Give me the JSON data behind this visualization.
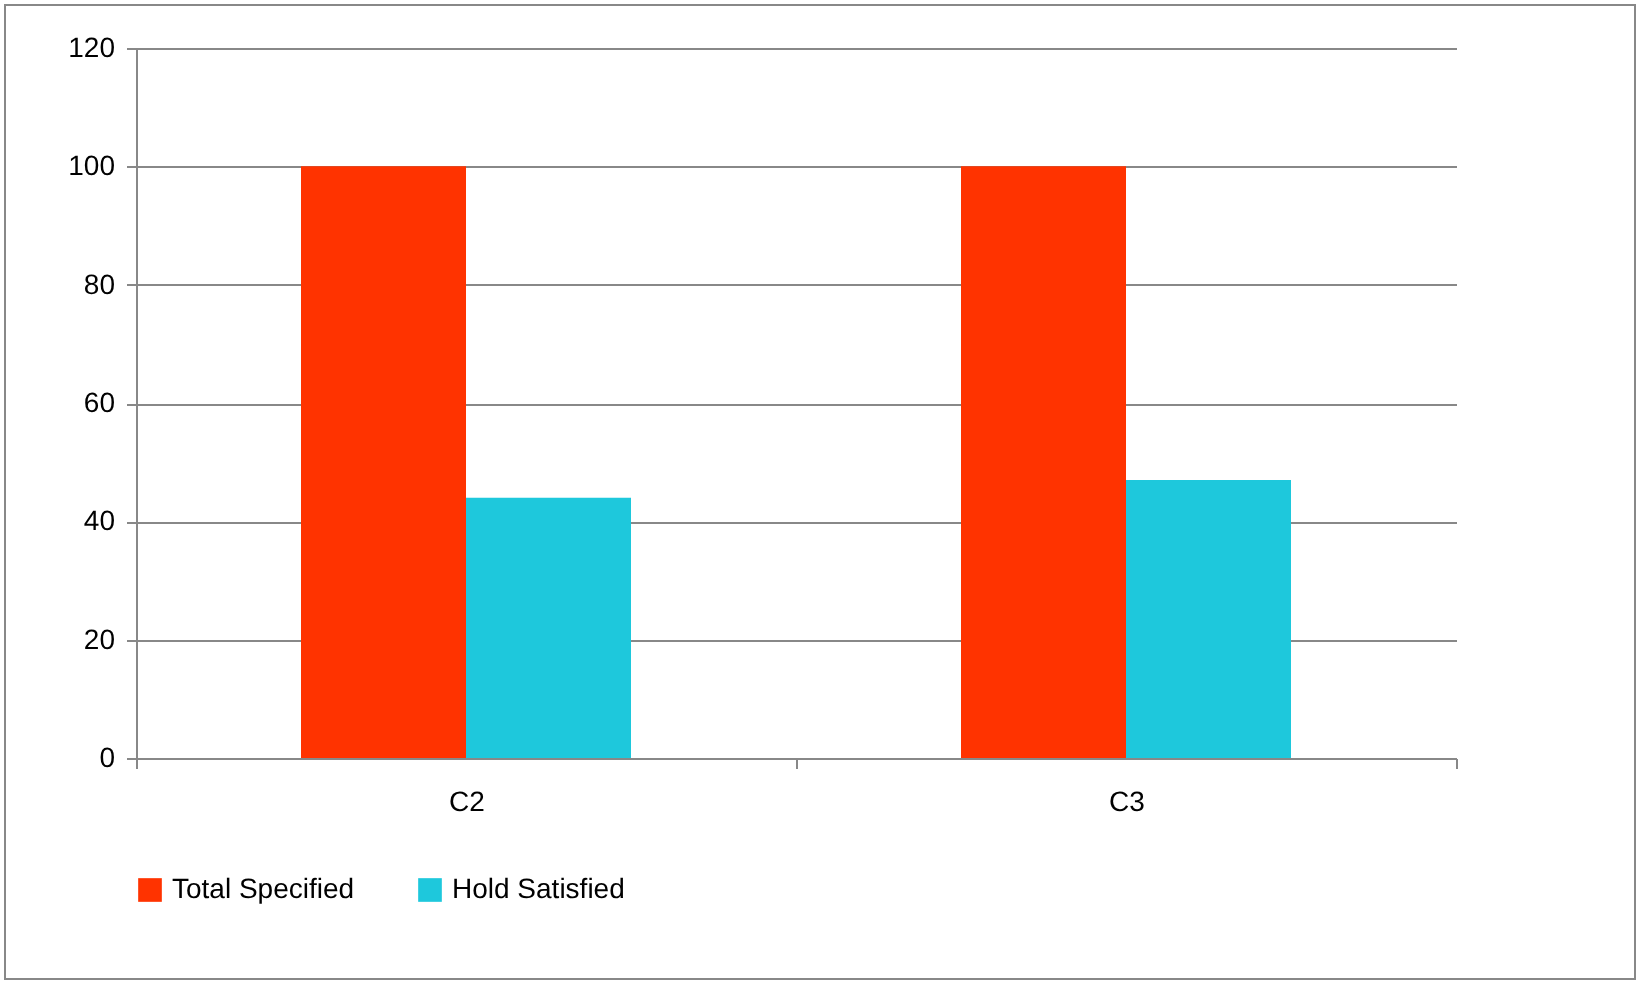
{
  "chart_data": {
    "type": "bar",
    "categories": [
      "C2",
      "C3"
    ],
    "series": [
      {
        "name": "Total Specified",
        "color": "#ff3300",
        "values": [
          100,
          100
        ]
      },
      {
        "name": "Hold Satisfied",
        "color": "#1ec8dc",
        "values": [
          44,
          47
        ]
      }
    ],
    "ylim": [
      0,
      120
    ],
    "yticks": [
      0,
      20,
      40,
      60,
      80,
      100,
      120
    ],
    "grid": "y",
    "legend": "bottom"
  }
}
